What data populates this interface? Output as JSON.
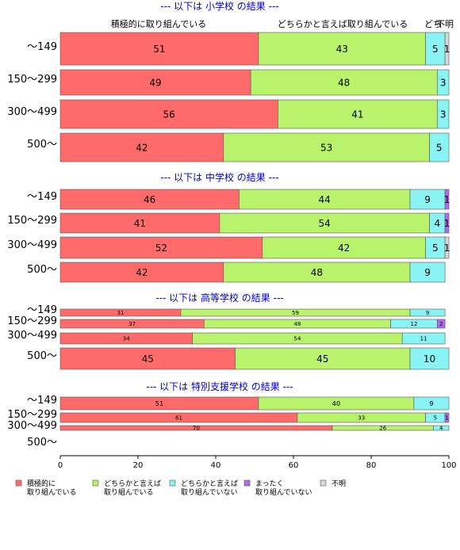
{
  "chart_data": {
    "type": "bar",
    "orientation": "horizontal",
    "stacked": true,
    "xlim": [
      0,
      100
    ],
    "x_ticks": [
      "0",
      "20",
      "40",
      "60",
      "80",
      "100"
    ],
    "grid": false,
    "legend_position": "bottom",
    "column_headers": [
      "積極的に取り組んでいる",
      "どちらかと言えば取り組んでいる",
      "どち",
      "不明"
    ],
    "series": [
      {
        "name": "積極的に\n取り組んでいる",
        "color": "#ff6b6b"
      },
      {
        "name": "どちらかと言えば\n取り組んでいる",
        "color": "#b8f36b"
      },
      {
        "name": "どちらかと言えば\n取り組んでいない",
        "color": "#8af3f3"
      },
      {
        "name": "まったく\n取り組んでいない",
        "color": "#b06bf3"
      },
      {
        "name": "不明",
        "color": "#d8d8d8"
      }
    ],
    "sections": [
      {
        "label": "--- 以下は 小学校 の結果 ---",
        "rows": [
          {
            "category": "～149",
            "values": [
              51,
              43,
              5,
              0,
              1
            ],
            "labels": [
              "51",
              "43",
              "5",
              "",
              "1"
            ]
          },
          {
            "category": "150～299",
            "values": [
              49,
              48,
              3,
              0,
              0
            ],
            "labels": [
              "49",
              "48",
              "3",
              "",
              ""
            ]
          },
          {
            "category": "300～499",
            "values": [
              56,
              41,
              3,
              0,
              0
            ],
            "labels": [
              "56",
              "41",
              "3",
              "",
              ""
            ]
          },
          {
            "category": "500～",
            "values": [
              42,
              53,
              5,
              0,
              0
            ],
            "labels": [
              "42",
              "53",
              "5",
              "",
              ""
            ]
          }
        ]
      },
      {
        "label": "--- 以下は 中学校 の結果 ---",
        "rows": [
          {
            "category": "～149",
            "values": [
              46,
              44,
              9,
              1,
              0
            ],
            "labels": [
              "46",
              "44",
              "9",
              "1",
              ""
            ]
          },
          {
            "category": "150～299",
            "values": [
              41,
              54,
              4,
              1,
              0
            ],
            "labels": [
              "41",
              "54",
              "4",
              "1",
              ""
            ]
          },
          {
            "category": "300～499",
            "values": [
              52,
              42,
              5,
              0,
              1
            ],
            "labels": [
              "52",
              "42",
              "5",
              "",
              "1"
            ]
          },
          {
            "category": "500～",
            "values": [
              42,
              48,
              9,
              0,
              0
            ],
            "labels": [
              "42",
              "48",
              "9",
              "",
              ""
            ]
          }
        ]
      },
      {
        "label": "--- 以下は 高等学校 の結果 ---",
        "rows": [
          {
            "category": "～149",
            "values": [
              31,
              59,
              9,
              0,
              0
            ],
            "labels": [
              "31",
              "59",
              "9",
              "",
              ""
            ]
          },
          {
            "category": "150～299",
            "values": [
              37,
              48,
              12,
              2,
              0
            ],
            "labels": [
              "37",
              "48",
              "12",
              "2",
              ""
            ]
          },
          {
            "category": "300～499",
            "values": [
              34,
              54,
              11,
              0,
              0
            ],
            "labels": [
              "34",
              "54",
              "11",
              "",
              ""
            ]
          },
          {
            "category": "500～",
            "values": [
              45,
              45,
              10,
              0,
              0
            ],
            "labels": [
              "45",
              "45",
              "10",
              "",
              ""
            ]
          }
        ]
      },
      {
        "label": "--- 以下は 特別支援学校 の結果 ---",
        "rows": [
          {
            "category": "～149",
            "values": [
              51,
              40,
              9,
              0,
              0
            ],
            "labels": [
              "51",
              "40",
              "9",
              "",
              ""
            ]
          },
          {
            "category": "150～299",
            "values": [
              61,
              33,
              5,
              1,
              0
            ],
            "labels": [
              "61",
              "33",
              "5",
              "1",
              ""
            ]
          },
          {
            "category": "300～499",
            "values": [
              70,
              26,
              4,
              0,
              0
            ],
            "labels": [
              "70",
              "26",
              "4",
              "",
              ""
            ]
          },
          {
            "category": "500～",
            "values": [],
            "labels": []
          }
        ]
      }
    ]
  }
}
